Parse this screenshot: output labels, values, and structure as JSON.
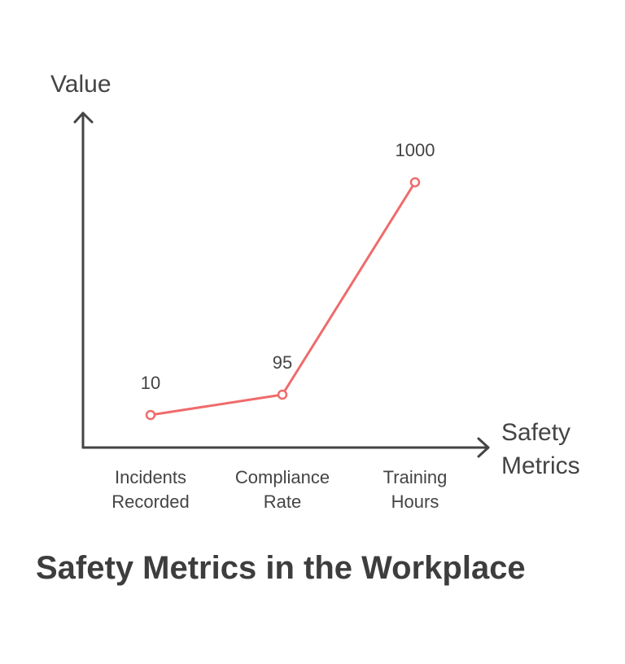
{
  "chart_data": {
    "type": "line",
    "title": "Safety Metrics in the Workplace",
    "xlabel": "Safety Metrics",
    "ylabel": "Value",
    "categories": [
      "Incidents Recorded",
      "Compliance Rate",
      "Training Hours"
    ],
    "series": [
      {
        "values": [
          10,
          95,
          1000
        ],
        "color": "#ef6b6b"
      }
    ],
    "data_labels": [
      "10",
      "95",
      "1000"
    ],
    "grid": false
  }
}
